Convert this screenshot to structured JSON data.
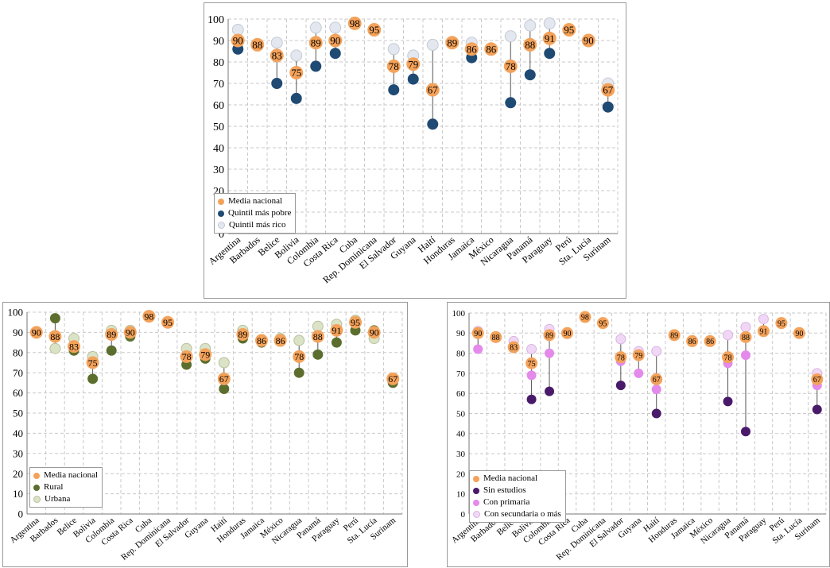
{
  "colors": {
    "media": "#f4a25a",
    "pobre": "#1f4a73",
    "rico": "#e3e7ef",
    "rural": "#5c6e2e",
    "urbana": "#dbe3c6",
    "sin": "#4a1a6a",
    "primaria": "#e38aea",
    "secundaria": "#f1d7f6",
    "grid": "#c9c9c9",
    "stem": "#555555"
  },
  "chart_data": [
    {
      "type": "scatter",
      "categories": [
        "Argentina",
        "Barbados",
        "Belice",
        "Bolivia",
        "Colombia",
        "Costa Rica",
        "Cuba",
        "Rep. Dominicana",
        "El Salvador",
        "Guyana",
        "Haití",
        "Honduras",
        "Jamaica",
        "México",
        "Nicaragua",
        "Panamá",
        "Paraguay",
        "Perú",
        "Sta. Lucía",
        "Surinam"
      ],
      "ylim": [
        0,
        100
      ],
      "yticks": [
        "0",
        "10",
        "20",
        "30",
        "40",
        "50",
        "60",
        "70",
        "80",
        "90",
        "100"
      ],
      "grid": true,
      "legend_position": "bottom-left",
      "series": [
        {
          "name": "Media nacional",
          "values": [
            90,
            88,
            83,
            75,
            89,
            90,
            98,
            95,
            78,
            79,
            67,
            89,
            86,
            86,
            78,
            88,
            91,
            95,
            90,
            67
          ]
        },
        {
          "name": "Quintil más pobre",
          "values": [
            86,
            88,
            70,
            63,
            78,
            84,
            null,
            null,
            67,
            72,
            51,
            null,
            82,
            null,
            61,
            74,
            84,
            null,
            null,
            59
          ]
        },
        {
          "name": "Quintil más rico",
          "values": [
            95,
            88,
            89,
            83,
            96,
            96,
            null,
            null,
            86,
            83,
            88,
            null,
            89,
            null,
            92,
            97,
            98,
            null,
            null,
            70
          ]
        }
      ],
      "labels": [
        "90",
        "88",
        "83",
        "75",
        "89",
        "90",
        "98",
        "95",
        "78",
        "79",
        "67",
        "89",
        "86",
        "86",
        "78",
        "88",
        "91",
        "95",
        "90",
        "67"
      ]
    },
    {
      "type": "scatter",
      "categories": [
        "Argentina",
        "Barbados",
        "Belice",
        "Bolivia",
        "Colombia",
        "Costa Rica",
        "Cuba",
        "Rep. Dominicana",
        "El Salvador",
        "Guyana",
        "Haití",
        "Honduras",
        "Jamaica",
        "México",
        "Nicaragua",
        "Panamá",
        "Paraguay",
        "Perú",
        "Sta. Lucía",
        "Surinam"
      ],
      "ylim": [
        0,
        100
      ],
      "yticks": [
        "0",
        "10",
        "20",
        "30",
        "40",
        "50",
        "60",
        "70",
        "80",
        "90",
        "100"
      ],
      "grid": true,
      "legend_position": "bottom-left",
      "series": [
        {
          "name": "Media nacional",
          "values": [
            90,
            88,
            83,
            75,
            89,
            90,
            98,
            95,
            78,
            79,
            67,
            89,
            86,
            86,
            78,
            88,
            91,
            95,
            90,
            67
          ]
        },
        {
          "name": "Rural",
          "values": [
            null,
            97,
            81,
            67,
            81,
            88,
            98,
            95,
            74,
            77,
            62,
            87,
            85,
            86,
            70,
            79,
            85,
            91,
            91,
            65
          ]
        },
        {
          "name": "Urbana",
          "values": [
            null,
            82,
            87,
            78,
            91,
            91,
            98,
            95,
            82,
            82,
            75,
            91,
            86,
            87,
            86,
            93,
            94,
            96,
            87,
            67
          ]
        }
      ],
      "labels": [
        "90",
        "88",
        "83",
        "75",
        "89",
        "90",
        "98",
        "95",
        "78",
        "79",
        "67",
        "89",
        "86",
        "86",
        "78",
        "88",
        "91",
        "95",
        "90",
        "67"
      ]
    },
    {
      "type": "scatter",
      "categories": [
        "Argentina",
        "Barbados",
        "Belice",
        "Bolivia",
        "Colombia",
        "Costa Rica",
        "Cuba",
        "Rep. Dominicana",
        "El Salvador",
        "Guyana",
        "Haití",
        "Honduras",
        "Jamaica",
        "México",
        "Nicaragua",
        "Panamá",
        "Paraguay",
        "Perú",
        "Sta. Lucía",
        "Surinam"
      ],
      "ylim": [
        0,
        100
      ],
      "yticks": [
        "0",
        "10",
        "20",
        "30",
        "40",
        "50",
        "60",
        "70",
        "80",
        "90",
        "100"
      ],
      "grid": true,
      "legend_position": "bottom-left",
      "series": [
        {
          "name": "Media nacional",
          "values": [
            90,
            88,
            83,
            75,
            89,
            90,
            98,
            95,
            78,
            79,
            67,
            89,
            86,
            86,
            78,
            88,
            91,
            95,
            90,
            67
          ]
        },
        {
          "name": "Sin estudios",
          "values": [
            null,
            null,
            null,
            57,
            61,
            null,
            null,
            null,
            64,
            null,
            50,
            null,
            null,
            null,
            56,
            41,
            null,
            null,
            null,
            52
          ]
        },
        {
          "name": "Con primaria",
          "values": [
            82,
            null,
            null,
            69,
            80,
            null,
            null,
            null,
            76,
            70,
            62,
            null,
            null,
            null,
            75,
            79,
            null,
            null,
            null,
            64
          ]
        },
        {
          "name": "Con secundaria o más",
          "values": [
            91,
            88,
            86,
            82,
            92,
            90,
            98,
            null,
            87,
            81,
            81,
            null,
            86,
            null,
            89,
            93,
            97,
            null,
            null,
            70
          ]
        }
      ],
      "labels": [
        "90",
        "88",
        "83",
        "75",
        "89",
        "90",
        "98",
        "95",
        "78",
        "79",
        "67",
        "89",
        "86",
        "86",
        "78",
        "88",
        "91",
        "95",
        "90",
        "67"
      ]
    }
  ]
}
